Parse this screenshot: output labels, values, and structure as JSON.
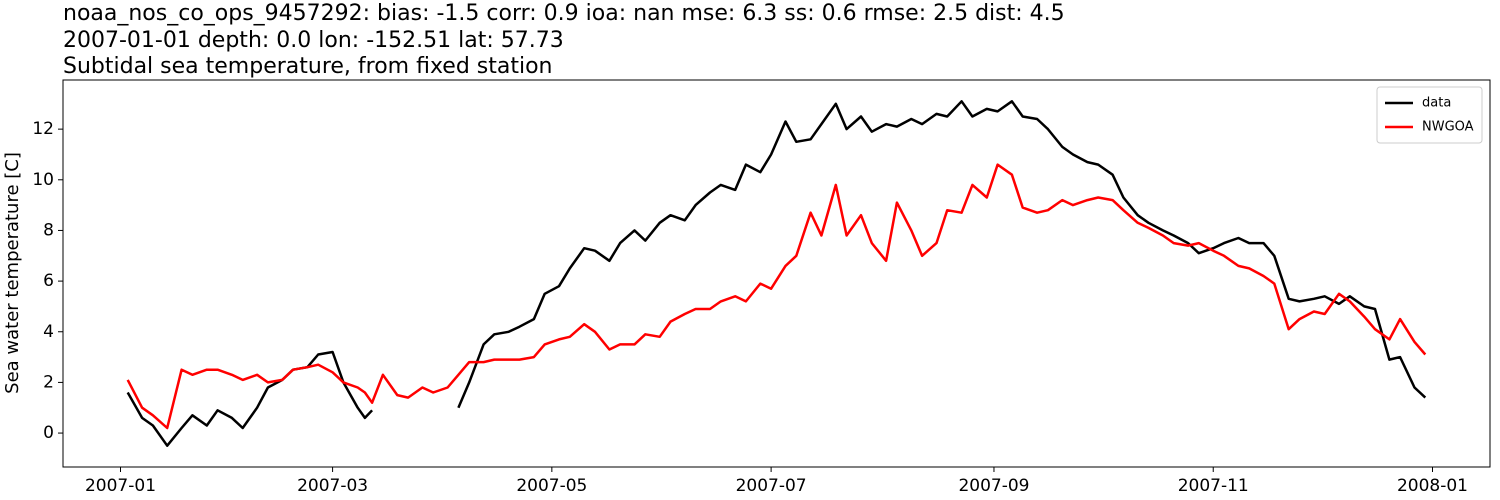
{
  "chart_data": {
    "type": "line",
    "title": [
      "noaa_nos_co_ops_9457292: bias: -1.5  corr: 0.9  ioa: nan  mse: 6.3  ss: 0.6  rmse: 2.5  dist: 4.5",
      "2007-01-01 depth: 0.0 lon: -152.51 lat: 57.73",
      "Subtidal sea temperature, from fixed station"
    ],
    "ylabel": "Sea water temperature [C]",
    "x": [
      "2007-01-03",
      "2007-01-07",
      "2007-01-10",
      "2007-01-14",
      "2007-01-18",
      "2007-01-21",
      "2007-01-25",
      "2007-01-28",
      "2007-02-01",
      "2007-02-04",
      "2007-02-08",
      "2007-02-11",
      "2007-02-15",
      "2007-02-18",
      "2007-02-22",
      "2007-02-25",
      "2007-03-01",
      "2007-03-04",
      "2007-03-08",
      "2007-03-10",
      "2007-03-12",
      "2007-03-15",
      "2007-03-19",
      "2007-03-22",
      "2007-03-26",
      "2007-03-29",
      "2007-04-02",
      "2007-04-05",
      "2007-04-08",
      "2007-04-12",
      "2007-04-15",
      "2007-04-19",
      "2007-04-22",
      "2007-04-26",
      "2007-04-29",
      "2007-05-03",
      "2007-05-06",
      "2007-05-10",
      "2007-05-13",
      "2007-05-17",
      "2007-05-20",
      "2007-05-24",
      "2007-05-27",
      "2007-05-31",
      "2007-06-03",
      "2007-06-07",
      "2007-06-10",
      "2007-06-14",
      "2007-06-17",
      "2007-06-21",
      "2007-06-24",
      "2007-06-28",
      "2007-07-01",
      "2007-07-05",
      "2007-07-08",
      "2007-07-12",
      "2007-07-15",
      "2007-07-19",
      "2007-07-22",
      "2007-07-26",
      "2007-07-29",
      "2007-08-02",
      "2007-08-05",
      "2007-08-09",
      "2007-08-12",
      "2007-08-16",
      "2007-08-19",
      "2007-08-23",
      "2007-08-26",
      "2007-08-30",
      "2007-09-02",
      "2007-09-06",
      "2007-09-09",
      "2007-09-13",
      "2007-09-16",
      "2007-09-20",
      "2007-09-23",
      "2007-09-27",
      "2007-09-30",
      "2007-10-04",
      "2007-10-07",
      "2007-10-11",
      "2007-10-14",
      "2007-10-18",
      "2007-10-21",
      "2007-10-25",
      "2007-10-28",
      "2007-11-01",
      "2007-11-04",
      "2007-11-08",
      "2007-11-11",
      "2007-11-15",
      "2007-11-18",
      "2007-11-22",
      "2007-11-25",
      "2007-11-29",
      "2007-12-02",
      "2007-12-06",
      "2007-12-09",
      "2007-12-13",
      "2007-12-16",
      "2007-12-20",
      "2007-12-23",
      "2007-12-27",
      "2007-12-30"
    ],
    "series": [
      {
        "name": "data",
        "color": "#000000",
        "values": [
          1.6,
          0.6,
          0.3,
          -0.5,
          0.2,
          0.7,
          0.3,
          0.9,
          0.6,
          0.2,
          1.0,
          1.8,
          2.1,
          2.5,
          2.6,
          3.1,
          3.2,
          2.0,
          1.0,
          0.6,
          0.9,
          null,
          null,
          null,
          null,
          null,
          null,
          1.0,
          2.0,
          3.5,
          3.9,
          4.0,
          4.2,
          4.5,
          5.5,
          5.8,
          6.5,
          7.3,
          7.2,
          6.8,
          7.5,
          8.0,
          7.6,
          8.3,
          8.6,
          8.4,
          9.0,
          9.5,
          9.8,
          9.6,
          10.6,
          10.3,
          11.0,
          12.3,
          11.5,
          11.6,
          12.2,
          13.0,
          12.0,
          12.5,
          11.9,
          12.2,
          12.1,
          12.4,
          12.2,
          12.6,
          12.5,
          13.1,
          12.5,
          12.8,
          12.7,
          13.1,
          12.5,
          12.4,
          12.0,
          11.3,
          11.0,
          10.7,
          10.6,
          10.2,
          9.3,
          8.6,
          8.3,
          8.0,
          7.8,
          7.5,
          7.1,
          7.3,
          7.5,
          7.7,
          7.5,
          7.5,
          7.0,
          5.3,
          5.2,
          5.3,
          5.4,
          5.1,
          5.4,
          5.0,
          4.9,
          2.9,
          3.0,
          1.8,
          1.4
        ]
      },
      {
        "name": "NWGOA",
        "color": "#ff0000",
        "values": [
          2.1,
          1.0,
          0.7,
          0.2,
          2.5,
          2.3,
          2.5,
          2.5,
          2.3,
          2.1,
          2.3,
          2.0,
          2.1,
          2.5,
          2.6,
          2.7,
          2.4,
          2.0,
          1.8,
          1.6,
          1.2,
          2.3,
          1.5,
          1.4,
          1.8,
          1.6,
          1.8,
          2.3,
          2.8,
          2.8,
          2.9,
          2.9,
          2.9,
          3.0,
          3.5,
          3.7,
          3.8,
          4.3,
          4.0,
          3.3,
          3.5,
          3.5,
          3.9,
          3.8,
          4.4,
          4.7,
          4.9,
          4.9,
          5.2,
          5.4,
          5.2,
          5.9,
          5.7,
          6.6,
          7.0,
          8.7,
          7.8,
          9.8,
          7.8,
          8.6,
          7.5,
          6.8,
          9.1,
          8.0,
          7.0,
          7.5,
          8.8,
          8.7,
          9.8,
          9.3,
          10.6,
          10.2,
          8.9,
          8.7,
          8.8,
          9.2,
          9.0,
          9.2,
          9.3,
          9.2,
          8.8,
          8.3,
          8.1,
          7.8,
          7.5,
          7.4,
          7.5,
          7.2,
          7.0,
          6.6,
          6.5,
          6.2,
          5.9,
          4.1,
          4.5,
          4.8,
          4.7,
          5.5,
          5.2,
          4.6,
          4.1,
          3.7,
          4.5,
          3.6,
          3.1
        ]
      }
    ],
    "xlim": [
      "2006-12-16",
      "2008-01-17"
    ],
    "xticks": [
      {
        "value": "2007-01-01",
        "label": "2007-01"
      },
      {
        "value": "2007-03-01",
        "label": "2007-03"
      },
      {
        "value": "2007-05-01",
        "label": "2007-05"
      },
      {
        "value": "2007-07-01",
        "label": "2007-07"
      },
      {
        "value": "2007-09-01",
        "label": "2007-09"
      },
      {
        "value": "2007-11-01",
        "label": "2007-11"
      },
      {
        "value": "2008-01-01",
        "label": "2008-01"
      }
    ],
    "ylim": [
      -1.34,
      13.94
    ],
    "yticks": [
      0,
      2,
      4,
      6,
      8,
      10,
      12
    ],
    "grid": false,
    "legend": "upper right"
  }
}
